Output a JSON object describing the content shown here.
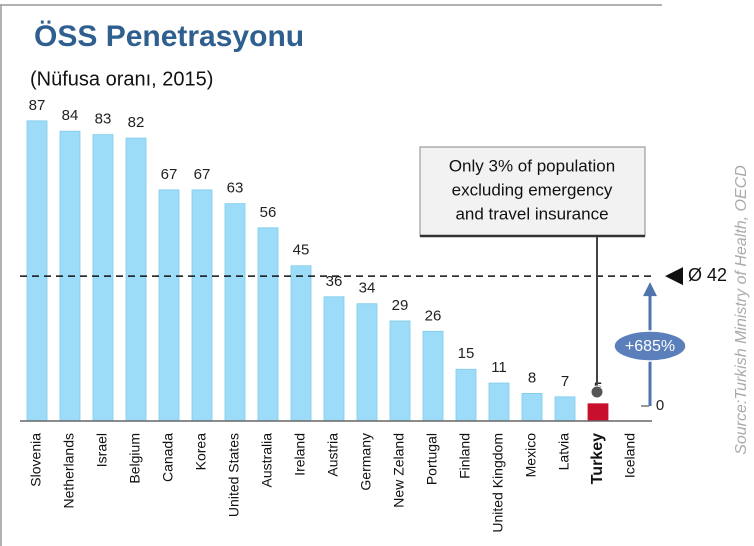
{
  "chart_data": {
    "type": "bar",
    "title": "ÖSS Penetrasyonu",
    "subtitle": "(Nüfusa oranı, 2015)",
    "categories": [
      "Slovenia",
      "Netherlands",
      "Israel",
      "Belgium",
      "Canada",
      "Korea",
      "United States",
      "Australia",
      "Ireland",
      "Austria",
      "Germany",
      "New Zeland",
      "Portugal",
      "Finland",
      "United Kingdom",
      "Mexico",
      "Latvia",
      "Turkey",
      "Iceland"
    ],
    "values": [
      87,
      84,
      83,
      82,
      67,
      67,
      63,
      56,
      45,
      36,
      34,
      29,
      26,
      15,
      11,
      8,
      7,
      5,
      0
    ],
    "color": "#9cdcf8",
    "highlight_index": 17,
    "highlight_color": "#c8102e",
    "reference_line": {
      "value": 42,
      "label": "Ø 42"
    },
    "callout": [
      "Only 3% of population",
      "excluding emergency",
      "and travel insurance"
    ],
    "badge": "+685%",
    "source": "Source:Turkish Ministry of Health, OECD"
  }
}
